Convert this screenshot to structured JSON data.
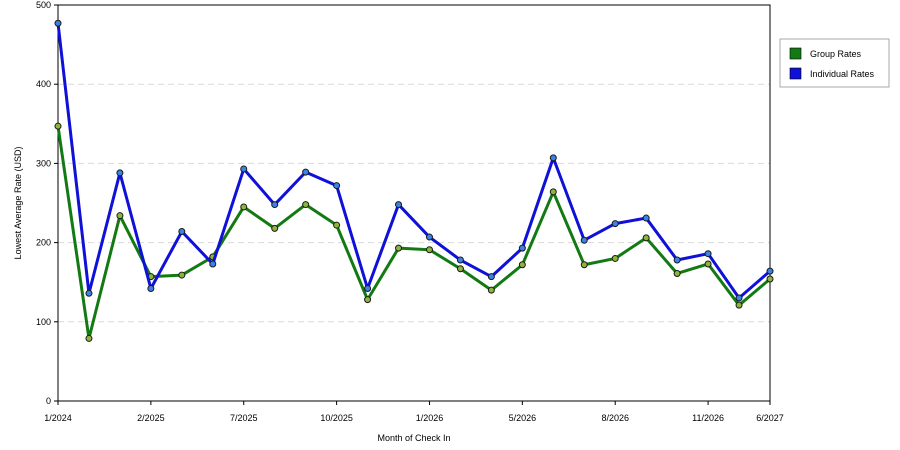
{
  "chart_data": {
    "type": "line",
    "title": "",
    "xlabel": "Month of Check In",
    "ylabel": "Lowest Average Rate (USD)",
    "ylim": [
      0,
      500
    ],
    "yticks": [
      0,
      100,
      200,
      300,
      400,
      500
    ],
    "xtick_labels": [
      "1/2024",
      "2/2025",
      "7/2025",
      "10/2025",
      "1/2026",
      "5/2026",
      "8/2026",
      "11/2026",
      "6/2027"
    ],
    "xtick_positions": [
      0,
      3,
      6,
      9,
      12,
      15,
      18,
      21,
      23
    ],
    "grid": "horizontal dashed",
    "legend_position": "right",
    "series": [
      {
        "name": "Group Rates",
        "color": "#137a13",
        "marker_color": "#8db53a",
        "values": [
          347,
          79,
          234,
          157,
          159,
          182,
          245,
          218,
          248,
          222,
          128,
          193,
          191,
          167,
          140,
          172,
          264,
          172,
          180,
          206,
          161,
          173,
          121,
          154
        ]
      },
      {
        "name": "Individual Rates",
        "color": "#0f10d8",
        "marker_color": "#3b82e8",
        "values": [
          477,
          136,
          288,
          142,
          214,
          173,
          293,
          248,
          289,
          272,
          142,
          248,
          207,
          178,
          157,
          193,
          307,
          203,
          224,
          231,
          178,
          186,
          130,
          164
        ]
      }
    ]
  }
}
